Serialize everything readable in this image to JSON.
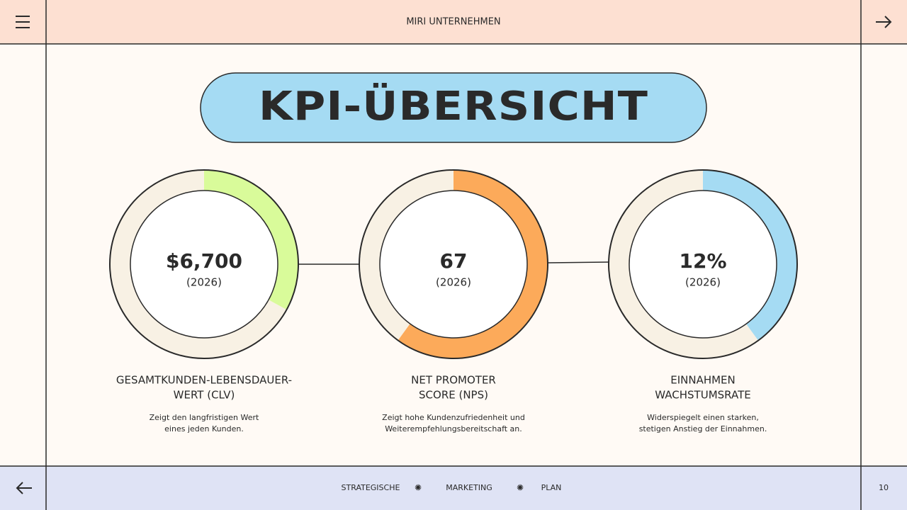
{
  "header": {
    "title": "MIRI UNTERNEHMEN"
  },
  "title": "KPI-ÜBERSICHT",
  "kpis": [
    {
      "value": "$6,700",
      "year": "(2026)",
      "label_lines": [
        "GESAMTKUNDEN-LEBENSDAUER-",
        "WERT (CLV)"
      ],
      "description_lines": [
        "Zeigt den langfristigen Wert",
        "eines jeden Kunden."
      ],
      "fill_percent": 33,
      "color": "#d9fb9a"
    },
    {
      "value": "67",
      "year": "(2026)",
      "label_lines": [
        "NET PROMOTER",
        "SCORE (NPS)"
      ],
      "description_lines": [
        "Zeigt hohe Kundenzufriedenheit und",
        "Weiterempfehlungsbereitschaft an."
      ],
      "fill_percent": 60,
      "color": "#fcaa5a"
    },
    {
      "value": "12%",
      "year": "(2026)",
      "label_lines": [
        "EINNAHMEN",
        "WACHSTUMSRATE"
      ],
      "description_lines": [
        "Widerspiegelt einen starken,",
        "stetigen Anstieg der Einnahmen."
      ],
      "fill_percent": 40,
      "color": "#a5dbf3"
    }
  ],
  "footer": {
    "items": [
      "STRATEGISCHE",
      "MARKETING",
      "PLAN"
    ],
    "page": "10"
  }
}
